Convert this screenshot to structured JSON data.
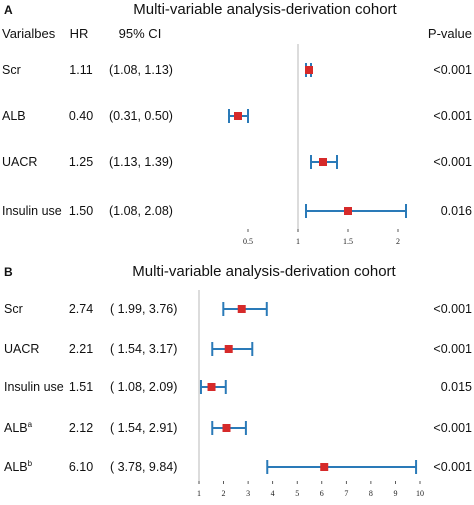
{
  "chart_data": [
    {
      "type": "forest",
      "panel_label": "A",
      "title": "Multi-variable analysis-derivation cohort",
      "headers": {
        "variable": "Varialbes",
        "hr": "HR",
        "ci": "95% CI",
        "p": "P-value"
      },
      "rows": [
        {
          "variable": "Scr",
          "sup": "",
          "hr_label": "1.11",
          "ci_label": "(1.08, 1.13)",
          "p_label": "<0.001",
          "hr": 1.11,
          "lower": 1.08,
          "upper": 1.13
        },
        {
          "variable": "ALB",
          "sup": "",
          "hr_label": "0.40",
          "ci_label": "(0.31, 0.50)",
          "p_label": "<0.001",
          "hr": 0.4,
          "lower": 0.31,
          "upper": 0.5
        },
        {
          "variable": "UACR",
          "sup": "",
          "hr_label": "1.25",
          "ci_label": "(1.13, 1.39)",
          "p_label": "<0.001",
          "hr": 1.25,
          "lower": 1.13,
          "upper": 1.39
        },
        {
          "variable": "Insulin use",
          "sup": "",
          "hr_label": "1.50",
          "ci_label": "(1.08, 2.08)",
          "p_label": "0.016",
          "hr": 1.5,
          "lower": 1.08,
          "upper": 2.08
        }
      ],
      "ticks": [
        "0.5",
        "1",
        "1.5",
        "2"
      ],
      "tick_values": [
        0.5,
        1,
        1.5,
        2
      ],
      "reference_line": 1,
      "xlim": [
        0.05,
        2.2
      ],
      "marker_color": "#d62a2a",
      "ci_color": "#2a7ab8"
    },
    {
      "type": "forest",
      "panel_label": "B",
      "title": "Multi-variable analysis-derivation cohort",
      "headers": {
        "variable": "",
        "hr": "",
        "ci": "",
        "p": ""
      },
      "rows": [
        {
          "variable": "Scr",
          "sup": "",
          "hr_label": "2.74",
          "ci_label": "( 1.99, 3.76)",
          "p_label": "<0.001",
          "hr": 2.74,
          "lower": 1.99,
          "upper": 3.76
        },
        {
          "variable": "UACR",
          "sup": "",
          "hr_label": "2.21",
          "ci_label": "( 1.54, 3.17)",
          "p_label": "<0.001",
          "hr": 2.21,
          "lower": 1.54,
          "upper": 3.17
        },
        {
          "variable": "Insulin use",
          "sup": "",
          "hr_label": "1.51",
          "ci_label": "( 1.08, 2.09)",
          "p_label": "0.015",
          "hr": 1.51,
          "lower": 1.08,
          "upper": 2.09
        },
        {
          "variable": "ALB",
          "sup": "a",
          "hr_label": "2.12",
          "ci_label": "( 1.54, 2.91)",
          "p_label": "<0.001",
          "hr": 2.12,
          "lower": 1.54,
          "upper": 2.91
        },
        {
          "variable": "ALB",
          "sup": "b",
          "hr_label": "6.10",
          "ci_label": "( 3.78, 9.84)",
          "p_label": "<0.001",
          "hr": 6.1,
          "lower": 3.78,
          "upper": 9.84
        }
      ],
      "ticks": [
        "1",
        "2",
        "3",
        "4",
        "5",
        "6",
        "7",
        "8",
        "9",
        "10"
      ],
      "tick_values": [
        1,
        2,
        3,
        4,
        5,
        6,
        7,
        8,
        9,
        10
      ],
      "reference_line": 1,
      "xlim": [
        1,
        10
      ],
      "marker_color": "#d62a2a",
      "ci_color": "#2a7ab8"
    }
  ]
}
